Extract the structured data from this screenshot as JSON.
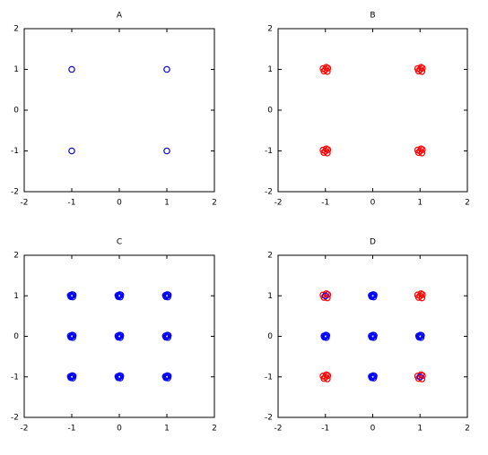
{
  "chart_data": [
    {
      "type": "scatter",
      "title": "A",
      "xlim": [
        -2,
        2
      ],
      "ylim": [
        -2,
        2
      ],
      "xticks": [
        -2,
        -1,
        0,
        1,
        2
      ],
      "yticks": [
        -2,
        -1,
        0,
        1,
        2
      ],
      "series": [
        {
          "color": "#0000cc",
          "x": [
            -1,
            1,
            -1,
            1
          ],
          "y": [
            1,
            1,
            -1,
            -1
          ]
        }
      ]
    },
    {
      "type": "scatter",
      "title": "B",
      "xlim": [
        -2,
        2
      ],
      "ylim": [
        -2,
        2
      ],
      "xticks": [
        -2,
        -1,
        0,
        1,
        2
      ],
      "yticks": [
        -2,
        -1,
        0,
        1,
        2
      ],
      "series": [
        {
          "color": "#ff0000",
          "x": [
            -1,
            -0.95,
            -1.05,
            -0.96,
            -1.03,
            -0.98,
            1,
            1.05,
            0.95,
            1.04,
            0.97,
            1.02,
            -1,
            -0.95,
            -1.05,
            -0.96,
            -1.03,
            -0.98,
            1,
            1.05,
            0.95,
            1.04,
            0.97,
            1.02
          ],
          "y": [
            1,
            1.03,
            1.02,
            0.95,
            0.96,
            1.05,
            1,
            1.03,
            1.02,
            0.95,
            0.96,
            1.05,
            -1,
            -0.97,
            -0.98,
            -1.05,
            -1.04,
            -0.95,
            -1,
            -0.97,
            -0.98,
            -1.05,
            -1.04,
            -0.95
          ]
        }
      ]
    },
    {
      "type": "scatter",
      "title": "C",
      "xlim": [
        -2,
        2
      ],
      "ylim": [
        -2,
        2
      ],
      "xticks": [
        -2,
        -1,
        0,
        1,
        2
      ],
      "yticks": [
        -2,
        -1,
        0,
        1,
        2
      ],
      "series": [
        {
          "color": "#0000ff",
          "x": [
            -1,
            -0.97,
            -1.03,
            -0.98,
            -1.02,
            -0.99,
            0,
            0.03,
            -0.03,
            0.02,
            -0.02,
            0.01,
            1,
            1.03,
            0.97,
            1.02,
            0.98,
            1.01,
            -1,
            -0.97,
            -1.03,
            -0.98,
            -1.02,
            -0.99,
            0,
            0.03,
            -0.03,
            0.02,
            -0.02,
            0.01,
            1,
            1.03,
            0.97,
            1.02,
            0.98,
            1.01,
            -1,
            -0.97,
            -1.03,
            -0.98,
            -1.02,
            -0.99,
            0,
            0.03,
            -0.03,
            0.02,
            -0.02,
            0.01,
            1,
            1.03,
            0.97,
            1.02,
            0.98,
            1.01
          ],
          "y": [
            1,
            1.02,
            1.01,
            0.97,
            0.98,
            1.03,
            1,
            1.02,
            1.01,
            0.97,
            0.98,
            1.03,
            1,
            1.02,
            1.01,
            0.97,
            0.98,
            1.03,
            0,
            0.02,
            0.01,
            -0.03,
            -0.02,
            0.03,
            0,
            0.02,
            0.01,
            -0.03,
            -0.02,
            0.03,
            0,
            0.02,
            0.01,
            -0.03,
            -0.02,
            0.03,
            -1,
            -0.98,
            -0.99,
            -1.03,
            -1.02,
            -0.97,
            -1,
            -0.98,
            -0.99,
            -1.03,
            -1.02,
            -0.97,
            -1,
            -0.98,
            -0.99,
            -1.03,
            -1.02,
            -0.97
          ]
        }
      ]
    },
    {
      "type": "scatter",
      "title": "D",
      "xlim": [
        -2,
        2
      ],
      "ylim": [
        -2,
        2
      ],
      "xticks": [
        -2,
        -1,
        0,
        1,
        2
      ],
      "yticks": [
        -2,
        -1,
        0,
        1,
        2
      ],
      "series": [
        {
          "color": "#ff0000",
          "x": [
            -1,
            -0.95,
            -1.05,
            -0.96,
            -1.03,
            -0.98,
            1,
            1.05,
            0.95,
            1.04,
            0.97,
            1.02,
            -1,
            -0.95,
            -1.05,
            -0.96,
            -1.03,
            -0.98,
            1,
            1.05,
            0.95,
            1.04,
            0.97,
            1.02
          ],
          "y": [
            1,
            1.03,
            1.02,
            0.95,
            0.96,
            1.05,
            1,
            1.03,
            1.02,
            0.95,
            0.96,
            1.05,
            -1,
            -0.97,
            -0.98,
            -1.05,
            -1.04,
            -0.95,
            -1,
            -0.97,
            -0.98,
            -1.05,
            -1.04,
            -0.95
          ]
        },
        {
          "color": "#0000ff",
          "x": [
            0,
            0.03,
            -0.03,
            0.02,
            -0.02,
            0.01,
            -1,
            -0.97,
            -1.03,
            -0.98,
            -1.02,
            -0.99,
            0,
            0.03,
            -0.03,
            0.02,
            -0.02,
            0.01,
            1,
            1.03,
            0.97,
            1.02,
            0.98,
            1.01,
            0,
            0.03,
            -0.03,
            0.02,
            -0.02,
            0.01,
            -1,
            1
          ],
          "y": [
            1,
            1.02,
            1.01,
            0.97,
            0.98,
            1.03,
            0,
            0.02,
            0.01,
            -0.03,
            -0.02,
            0.03,
            0,
            0.02,
            0.01,
            -0.03,
            -0.02,
            0.03,
            0,
            0.02,
            0.01,
            -0.03,
            -0.02,
            0.03,
            -1,
            -0.98,
            -0.99,
            -1.03,
            -1.02,
            -0.97,
            1,
            -1
          ]
        }
      ]
    }
  ]
}
